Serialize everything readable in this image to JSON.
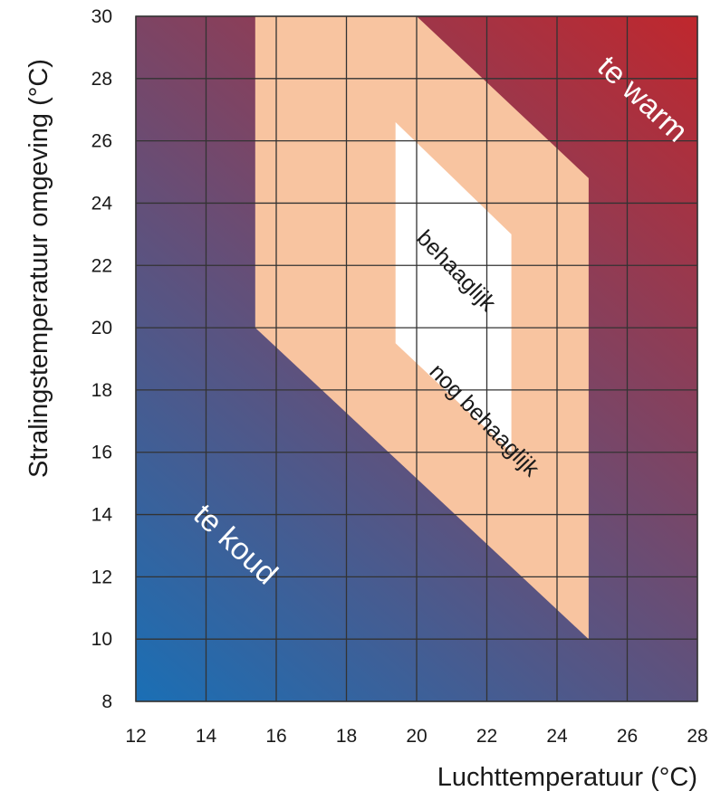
{
  "chart_data": {
    "type": "area",
    "xlabel": "Luchttemperatuur (°C)",
    "ylabel": "Stralingstemperatuur omgeving (°C)",
    "xlim": [
      12,
      28
    ],
    "ylim": [
      8,
      30
    ],
    "x_ticks": [
      "12",
      "14",
      "16",
      "18",
      "20",
      "22",
      "24",
      "26",
      "28"
    ],
    "y_ticks": [
      "8",
      "10",
      "12",
      "14",
      "16",
      "18",
      "20",
      "22",
      "24",
      "26",
      "28",
      "30"
    ],
    "grid": true,
    "background_gradient": {
      "cold_color": "#1a6fb5",
      "warm_color": "#c0272d"
    },
    "regions": [
      {
        "label": "nog behaaglijk",
        "color": "#f8c4a0",
        "polygon": [
          [
            15.4,
            30
          ],
          [
            20,
            30
          ],
          [
            24.9,
            24.8
          ],
          [
            24.9,
            10
          ],
          [
            15.4,
            20
          ]
        ]
      },
      {
        "label": "behaaglijk",
        "color": "#ffffff",
        "polygon": [
          [
            19.4,
            26.6
          ],
          [
            22.7,
            23
          ],
          [
            22.7,
            16
          ],
          [
            19.4,
            19.5
          ]
        ]
      }
    ],
    "annotations": [
      {
        "text": "te warm",
        "x": 26.4,
        "y": 27.3,
        "angle": 43,
        "color": "#ffffff",
        "size": 34
      },
      {
        "text": "te koud",
        "x": 14.8,
        "y": 13.0,
        "angle": 43,
        "color": "#ffffff",
        "size": 34
      },
      {
        "text": "behaaglijk",
        "x": 21.1,
        "y": 21.8,
        "angle": 46,
        "color": "#1a1a1a",
        "size": 25
      },
      {
        "text": "nog behaaglijk",
        "x": 21.9,
        "y": 17.0,
        "angle": 46,
        "color": "#1a1a1a",
        "size": 25
      }
    ]
  }
}
